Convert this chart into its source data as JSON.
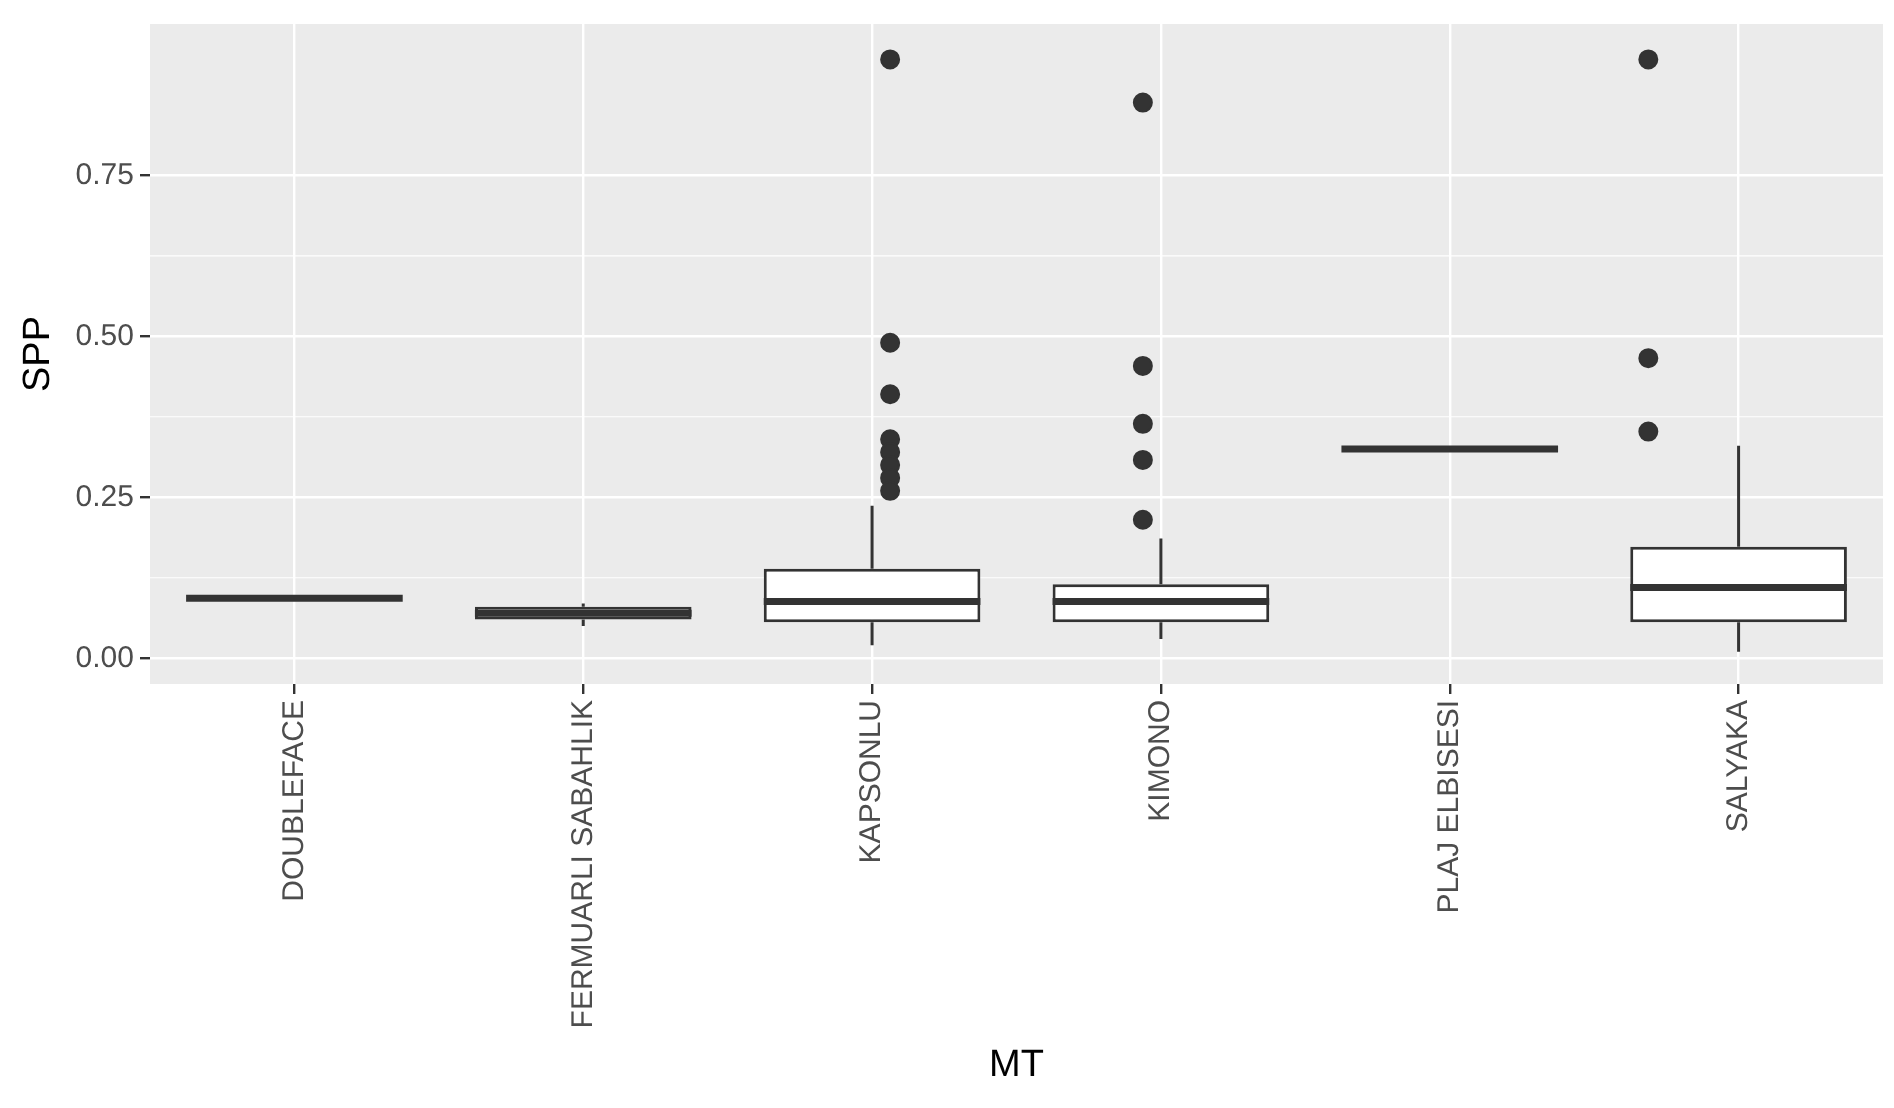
{
  "chart_data": {
    "type": "box",
    "xlabel": "MT",
    "ylabel": "SPP",
    "categories": [
      "DOUBLEFACE",
      "FERMUARLI SABAHLIK",
      "KAPSONLU",
      "KIMONO",
      "PLAJ ELBISESI",
      "SALYAKA"
    ],
    "boxes": [
      {
        "low": 0.093,
        "q1": 0.093,
        "median": 0.093,
        "q3": 0.093,
        "high": 0.093
      },
      {
        "low": 0.05,
        "q1": 0.06,
        "median": 0.07,
        "q3": 0.08,
        "high": 0.085
      },
      {
        "low": 0.02,
        "q1": 0.056,
        "median": 0.088,
        "q3": 0.139,
        "high": 0.237,
        "outliers": [
          0.93,
          0.49,
          0.41,
          0.34,
          0.32,
          0.3,
          0.28,
          0.26
        ]
      },
      {
        "low": 0.03,
        "q1": 0.056,
        "median": 0.088,
        "q3": 0.115,
        "high": 0.186,
        "outliers": [
          0.863,
          0.454,
          0.364,
          0.308,
          0.215
        ]
      },
      {
        "low": 0.325,
        "q1": 0.325,
        "median": 0.325,
        "q3": 0.325,
        "high": 0.325
      },
      {
        "low": 0.01,
        "q1": 0.056,
        "median": 0.11,
        "q3": 0.173,
        "high": 0.33,
        "outliers": [
          0.93,
          0.466,
          0.352
        ]
      }
    ],
    "ylim": [
      -0.04,
      0.985
    ],
    "yticks": [
      {
        "value": 0,
        "label": "0.00"
      },
      {
        "value": 0.25,
        "label": "0.25"
      },
      {
        "value": 0.5,
        "label": "0.50"
      },
      {
        "value": 0.75,
        "label": "0.75"
      }
    ],
    "grid": true
  }
}
